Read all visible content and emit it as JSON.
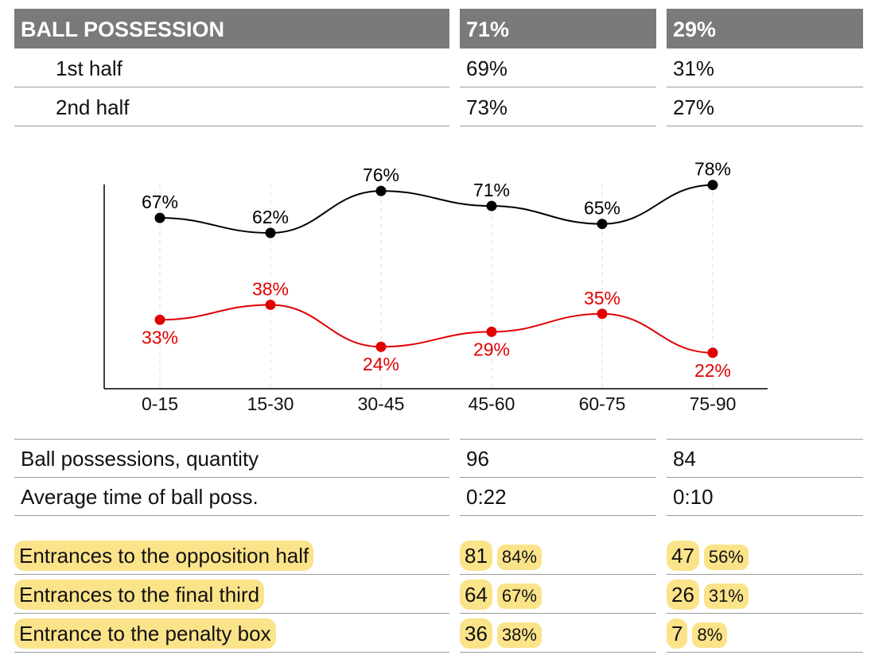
{
  "header": {
    "label": "BALL POSSESSION",
    "team1": "71%",
    "team2": "29%"
  },
  "halves": [
    {
      "label": "1st half",
      "team1": "69%",
      "team2": "31%"
    },
    {
      "label": "2nd half",
      "team1": "73%",
      "team2": "27%"
    }
  ],
  "stats": [
    {
      "label": "Ball possessions, quantity",
      "team1": "96",
      "team2": "84"
    },
    {
      "label": "Average time of ball poss.",
      "team1": "0:22",
      "team2": "0:10"
    }
  ],
  "entrances": [
    {
      "label": "Entrances to the opposition half",
      "team1": "81",
      "team1_pct": "84%",
      "team2": "47",
      "team2_pct": "56%"
    },
    {
      "label": "Entrances to the final third",
      "team1": "64",
      "team1_pct": "67%",
      "team2": "26",
      "team2_pct": "31%"
    },
    {
      "label": "Entrance to the penalty box",
      "team1": "36",
      "team1_pct": "38%",
      "team2": "7",
      "team2_pct": "8%"
    }
  ],
  "colors": {
    "header_bg": "#7a7a7a",
    "highlight": "#fbe38a",
    "team1_line": "#000000",
    "team2_line": "#e00000"
  },
  "chart_data": {
    "type": "line",
    "categories": [
      "0-15",
      "15-30",
      "30-45",
      "45-60",
      "60-75",
      "75-90"
    ],
    "series": [
      {
        "values": [
          67,
          62,
          76,
          71,
          65,
          78
        ],
        "labels": [
          "67%",
          "62%",
          "76%",
          "71%",
          "65%",
          "78%"
        ],
        "color": "#000000"
      },
      {
        "values": [
          33,
          38,
          24,
          29,
          35,
          22
        ],
        "labels": [
          "33%",
          "38%",
          "24%",
          "29%",
          "35%",
          "22%"
        ],
        "color": "#e00000"
      }
    ],
    "ylim": [
      10,
      88
    ],
    "grid": "vertical dashed",
    "xlabel": "",
    "ylabel": "",
    "title": ""
  }
}
